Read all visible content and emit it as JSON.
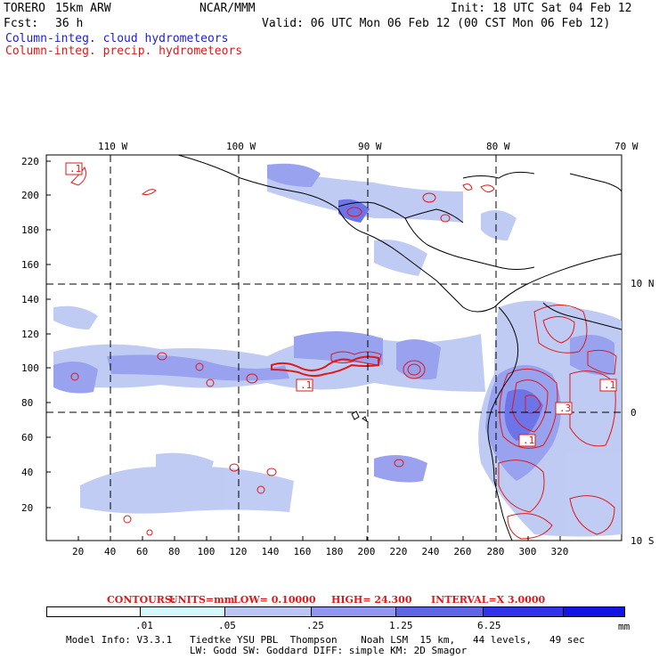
{
  "header": {
    "model": "TORERO",
    "resolution": "15km ARW",
    "org": "NCAR/MMM",
    "init": "Init: 18 UTC Sat 04 Feb 12",
    "fcst_label": "Fcst:",
    "fcst_hours": "36 h",
    "valid": "Valid: 06 UTC Mon 06 Feb 12 (00 CST Mon 06 Feb 12)"
  },
  "fields": {
    "cloud": "Column-integ. cloud hydrometeors",
    "precip": "Column-integ. precip. hydrometeors"
  },
  "axes": {
    "top_lon": [
      "110 W",
      "100 W",
      "90 W",
      "80 W",
      "70 W"
    ],
    "right_lat": [
      "10 N",
      "0",
      "10 S"
    ],
    "left_ticks": [
      "220",
      "200",
      "180",
      "160",
      "140",
      "120",
      "100",
      "80",
      "60",
      "40",
      "20"
    ],
    "bottom_ticks": [
      "20",
      "40",
      "60",
      "80",
      "100",
      "120",
      "140",
      "160",
      "180",
      "200",
      "220",
      "240",
      "260",
      "280",
      "300",
      "320"
    ]
  },
  "contour_labels": [
    ".1",
    ".1",
    ".1",
    ".3",
    ".1"
  ],
  "contour_info": {
    "prefix": "CONTOURS:",
    "units": "UNITS=mm",
    "low": "LOW= 0.10000",
    "high": "HIGH= 24.300",
    "interval": "INTERVAL=X 3.0000"
  },
  "colorbar": {
    "levels": [
      ".01",
      ".05",
      ".25",
      "1.25",
      "6.25"
    ],
    "unit": "mm",
    "colors": [
      "#ffffff",
      "#d4f7fb",
      "#b9c6f2",
      "#8f98ee",
      "#5e66e6",
      "#3232ea",
      "#1414e6"
    ]
  },
  "model_info": {
    "line1": "Model Info: V3.3.1   Tiedtke YSU PBL  Thompson    Noah LSM  15 km,   44 levels,   49 sec",
    "line2": "LW: Godd SW: Goddard DIFF: simple KM: 2D Smagor"
  }
}
